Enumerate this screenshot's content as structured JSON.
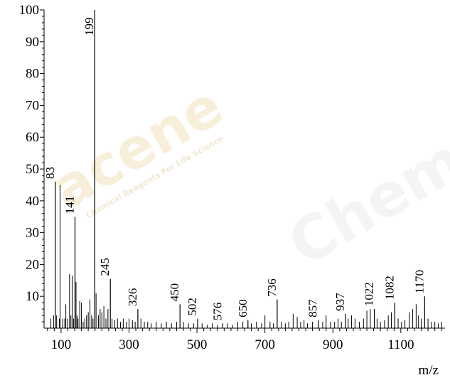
{
  "chart_data": {
    "type": "bar",
    "title": "",
    "xlabel": "m/z",
    "ylabel": "",
    "xlim": [
      50,
      1230
    ],
    "ylim": [
      0,
      100
    ],
    "grid": false,
    "x_ticks": [
      100,
      300,
      500,
      700,
      900,
      1100
    ],
    "x_tick_labels": [
      "100",
      "300",
      "500",
      "700",
      "900",
      "1100"
    ],
    "y_ticks": [
      10,
      20,
      30,
      40,
      50,
      60,
      70,
      80,
      90,
      100
    ],
    "y_tick_labels": [
      "10",
      "20",
      "30",
      "40",
      "50",
      "60",
      "70",
      "80",
      "90",
      "100"
    ],
    "labeled_peaks": [
      {
        "mz": 83,
        "intensity": 46,
        "label": "83"
      },
      {
        "mz": 141,
        "intensity": 35,
        "label": "141"
      },
      {
        "mz": 199,
        "intensity": 100,
        "label": "199"
      },
      {
        "mz": 245,
        "intensity": 15.5,
        "label": "245"
      },
      {
        "mz": 326,
        "intensity": 6,
        "label": "326"
      },
      {
        "mz": 450,
        "intensity": 7.5,
        "label": "450"
      },
      {
        "mz": 502,
        "intensity": 3,
        "label": "502"
      },
      {
        "mz": 576,
        "intensity": 1.5,
        "label": "576"
      },
      {
        "mz": 650,
        "intensity": 2.5,
        "label": "650"
      },
      {
        "mz": 736,
        "intensity": 9,
        "label": "736"
      },
      {
        "mz": 857,
        "intensity": 2.5,
        "label": "857"
      },
      {
        "mz": 937,
        "intensity": 4.5,
        "label": "937"
      },
      {
        "mz": 1022,
        "intensity": 6,
        "label": "1022"
      },
      {
        "mz": 1082,
        "intensity": 8,
        "label": "1082"
      },
      {
        "mz": 1170,
        "intensity": 10,
        "label": "1170"
      }
    ],
    "peaks": [
      {
        "mz": 70,
        "intensity": 3
      },
      {
        "mz": 78,
        "intensity": 4
      },
      {
        "mz": 87,
        "intensity": 4
      },
      {
        "mz": 95,
        "intensity": 3
      },
      {
        "mz": 97,
        "intensity": 45
      },
      {
        "mz": 105,
        "intensity": 3
      },
      {
        "mz": 111,
        "intensity": 3
      },
      {
        "mz": 114,
        "intensity": 7.5
      },
      {
        "mz": 120,
        "intensity": 3
      },
      {
        "mz": 125,
        "intensity": 17
      },
      {
        "mz": 129,
        "intensity": 4
      },
      {
        "mz": 133,
        "intensity": 16.5
      },
      {
        "mz": 137,
        "intensity": 3
      },
      {
        "mz": 144,
        "intensity": 14.5
      },
      {
        "mz": 147,
        "intensity": 4
      },
      {
        "mz": 150,
        "intensity": 3
      },
      {
        "mz": 155,
        "intensity": 8.5
      },
      {
        "mz": 160,
        "intensity": 8
      },
      {
        "mz": 165,
        "intensity": 2
      },
      {
        "mz": 170,
        "intensity": 3
      },
      {
        "mz": 175,
        "intensity": 4
      },
      {
        "mz": 180,
        "intensity": 5
      },
      {
        "mz": 185,
        "intensity": 9
      },
      {
        "mz": 190,
        "intensity": 4
      },
      {
        "mz": 194,
        "intensity": 3
      },
      {
        "mz": 203,
        "intensity": 11
      },
      {
        "mz": 210,
        "intensity": 4
      },
      {
        "mz": 215,
        "intensity": 6
      },
      {
        "mz": 220,
        "intensity": 5
      },
      {
        "mz": 226,
        "intensity": 7
      },
      {
        "mz": 232,
        "intensity": 3
      },
      {
        "mz": 238,
        "intensity": 6
      },
      {
        "mz": 250,
        "intensity": 3
      },
      {
        "mz": 258,
        "intensity": 2.5
      },
      {
        "mz": 266,
        "intensity": 3
      },
      {
        "mz": 275,
        "intensity": 2
      },
      {
        "mz": 283,
        "intensity": 3
      },
      {
        "mz": 292,
        "intensity": 2
      },
      {
        "mz": 300,
        "intensity": 3
      },
      {
        "mz": 310,
        "intensity": 2.5
      },
      {
        "mz": 318,
        "intensity": 2
      },
      {
        "mz": 335,
        "intensity": 3
      },
      {
        "mz": 345,
        "intensity": 2
      },
      {
        "mz": 355,
        "intensity": 2
      },
      {
        "mz": 365,
        "intensity": 1.5
      },
      {
        "mz": 380,
        "intensity": 2
      },
      {
        "mz": 395,
        "intensity": 1.5
      },
      {
        "mz": 410,
        "intensity": 2
      },
      {
        "mz": 425,
        "intensity": 1.5
      },
      {
        "mz": 440,
        "intensity": 2
      },
      {
        "mz": 460,
        "intensity": 2
      },
      {
        "mz": 475,
        "intensity": 1.5
      },
      {
        "mz": 490,
        "intensity": 1.5
      },
      {
        "mz": 515,
        "intensity": 1.5
      },
      {
        "mz": 530,
        "intensity": 1
      },
      {
        "mz": 545,
        "intensity": 1.5
      },
      {
        "mz": 560,
        "intensity": 1
      },
      {
        "mz": 590,
        "intensity": 1.5
      },
      {
        "mz": 605,
        "intensity": 1
      },
      {
        "mz": 620,
        "intensity": 2
      },
      {
        "mz": 635,
        "intensity": 2
      },
      {
        "mz": 660,
        "intensity": 1.5
      },
      {
        "mz": 675,
        "intensity": 2
      },
      {
        "mz": 690,
        "intensity": 1.5
      },
      {
        "mz": 700,
        "intensity": 4
      },
      {
        "mz": 715,
        "intensity": 2
      },
      {
        "mz": 725,
        "intensity": 1.5
      },
      {
        "mz": 748,
        "intensity": 2
      },
      {
        "mz": 760,
        "intensity": 1.5
      },
      {
        "mz": 770,
        "intensity": 2
      },
      {
        "mz": 783,
        "intensity": 4.5
      },
      {
        "mz": 795,
        "intensity": 3.5
      },
      {
        "mz": 805,
        "intensity": 2
      },
      {
        "mz": 815,
        "intensity": 2.5
      },
      {
        "mz": 825,
        "intensity": 1.5
      },
      {
        "mz": 840,
        "intensity": 2
      },
      {
        "mz": 870,
        "intensity": 2
      },
      {
        "mz": 880,
        "intensity": 4
      },
      {
        "mz": 893,
        "intensity": 2
      },
      {
        "mz": 905,
        "intensity": 2
      },
      {
        "mz": 915,
        "intensity": 3
      },
      {
        "mz": 925,
        "intensity": 2
      },
      {
        "mz": 945,
        "intensity": 3
      },
      {
        "mz": 955,
        "intensity": 4
      },
      {
        "mz": 965,
        "intensity": 3
      },
      {
        "mz": 978,
        "intensity": 2
      },
      {
        "mz": 990,
        "intensity": 3
      },
      {
        "mz": 1000,
        "intensity": 5.5
      },
      {
        "mz": 1010,
        "intensity": 6
      },
      {
        "mz": 1030,
        "intensity": 3
      },
      {
        "mz": 1040,
        "intensity": 2
      },
      {
        "mz": 1052,
        "intensity": 2.5
      },
      {
        "mz": 1063,
        "intensity": 4
      },
      {
        "mz": 1072,
        "intensity": 5
      },
      {
        "mz": 1092,
        "intensity": 3
      },
      {
        "mz": 1102,
        "intensity": 2
      },
      {
        "mz": 1112,
        "intensity": 2.5
      },
      {
        "mz": 1125,
        "intensity": 5
      },
      {
        "mz": 1135,
        "intensity": 6
      },
      {
        "mz": 1145,
        "intensity": 7.5
      },
      {
        "mz": 1152,
        "intensity": 4
      },
      {
        "mz": 1160,
        "intensity": 3
      },
      {
        "mz": 1180,
        "intensity": 3
      },
      {
        "mz": 1190,
        "intensity": 2
      },
      {
        "mz": 1200,
        "intensity": 2
      },
      {
        "mz": 1210,
        "intensity": 1.5
      },
      {
        "mz": 1220,
        "intensity": 2
      }
    ]
  },
  "watermark": {
    "brand": "acene",
    "tagline": "Chemical Reagents For Life Science",
    "word": "Chem",
    "color": "#f3ead0"
  }
}
